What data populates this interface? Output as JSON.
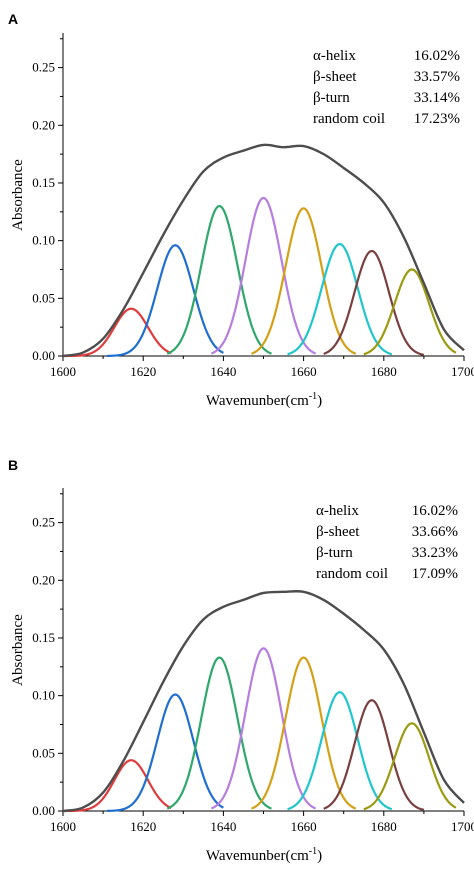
{
  "chart_data": [
    {
      "type": "area",
      "panel_label": "A",
      "xlabel": "Wavemunber(cm",
      "xlabel_sup": "-1",
      "xlabel_close": ")",
      "ylabel": "Absorbance",
      "xlim": [
        1600,
        1700
      ],
      "ylim": [
        0,
        0.28
      ],
      "xticks": [
        1600,
        1620,
        1640,
        1660,
        1680,
        1700
      ],
      "yticks": [
        0.0,
        0.05,
        0.1,
        0.15,
        0.2,
        0.25
      ],
      "grid": false,
      "annotations": [
        {
          "name": "α-helix",
          "value": "16.02%"
        },
        {
          "name": "β-sheet",
          "value": "33.57%"
        },
        {
          "name": "β-turn",
          "value": "33.14%"
        },
        {
          "name": "random coil",
          "value": "17.23%"
        }
      ],
      "envelope": {
        "color": "#4d4d4d",
        "points": [
          [
            1600,
            0.0
          ],
          [
            1605,
            0.003
          ],
          [
            1610,
            0.015
          ],
          [
            1615,
            0.04
          ],
          [
            1620,
            0.072
          ],
          [
            1625,
            0.105
          ],
          [
            1630,
            0.135
          ],
          [
            1635,
            0.16
          ],
          [
            1640,
            0.172
          ],
          [
            1645,
            0.178
          ],
          [
            1650,
            0.183
          ],
          [
            1655,
            0.181
          ],
          [
            1660,
            0.182
          ],
          [
            1665,
            0.175
          ],
          [
            1670,
            0.163
          ],
          [
            1675,
            0.15
          ],
          [
            1680,
            0.133
          ],
          [
            1685,
            0.103
          ],
          [
            1690,
            0.063
          ],
          [
            1695,
            0.023
          ],
          [
            1700,
            0.005
          ]
        ]
      },
      "series": [
        {
          "center": 1617,
          "height": 0.041,
          "sigma": 4.2,
          "range": [
            1600,
            1627
          ],
          "color": "#e03c3c"
        },
        {
          "center": 1628,
          "height": 0.096,
          "sigma": 4.5,
          "range": [
            1611,
            1640
          ],
          "color": "#1f6fd0"
        },
        {
          "center": 1639,
          "height": 0.13,
          "sigma": 4.5,
          "range": [
            1626,
            1652
          ],
          "color": "#2ea86b"
        },
        {
          "center": 1650,
          "height": 0.137,
          "sigma": 4.5,
          "range": [
            1637,
            1663
          ],
          "color": "#b57ee0"
        },
        {
          "center": 1660,
          "height": 0.128,
          "sigma": 4.5,
          "range": [
            1647,
            1673
          ],
          "color": "#d4a017"
        },
        {
          "center": 1669,
          "height": 0.097,
          "sigma": 4.5,
          "range": [
            1656,
            1682
          ],
          "color": "#1fc6cc"
        },
        {
          "center": 1677,
          "height": 0.091,
          "sigma": 4.3,
          "range": [
            1665,
            1690
          ],
          "color": "#7a4040"
        },
        {
          "center": 1687,
          "height": 0.075,
          "sigma": 4.3,
          "range": [
            1675,
            1698
          ],
          "color": "#9c9a10"
        }
      ]
    },
    {
      "type": "area",
      "panel_label": "B",
      "xlabel": "Wavemunber(cm",
      "xlabel_sup": "-1",
      "xlabel_close": ")",
      "ylabel": "Absorbance",
      "xlim": [
        1600,
        1700
      ],
      "ylim": [
        0,
        0.28
      ],
      "xticks": [
        1600,
        1620,
        1640,
        1660,
        1680,
        1700
      ],
      "yticks": [
        0.0,
        0.05,
        0.1,
        0.15,
        0.2,
        0.25
      ],
      "grid": false,
      "annotations": [
        {
          "name": "α-helix",
          "value": "16.02%"
        },
        {
          "name": "β-sheet",
          "value": "33.66%"
        },
        {
          "name": "β-turn",
          "value": "33.23%"
        },
        {
          "name": "random coil",
          "value": "17.09%"
        }
      ],
      "envelope": {
        "color": "#4d4d4d",
        "points": [
          [
            1600,
            0.0
          ],
          [
            1605,
            0.003
          ],
          [
            1610,
            0.016
          ],
          [
            1615,
            0.043
          ],
          [
            1620,
            0.077
          ],
          [
            1625,
            0.112
          ],
          [
            1630,
            0.143
          ],
          [
            1635,
            0.166
          ],
          [
            1640,
            0.177
          ],
          [
            1645,
            0.183
          ],
          [
            1650,
            0.189
          ],
          [
            1655,
            0.19
          ],
          [
            1660,
            0.19
          ],
          [
            1665,
            0.183
          ],
          [
            1670,
            0.171
          ],
          [
            1675,
            0.157
          ],
          [
            1680,
            0.14
          ],
          [
            1685,
            0.11
          ],
          [
            1690,
            0.068
          ],
          [
            1695,
            0.027
          ],
          [
            1700,
            0.007
          ]
        ]
      },
      "series": [
        {
          "center": 1617,
          "height": 0.044,
          "sigma": 4.2,
          "range": [
            1600,
            1627
          ],
          "color": "#e03c3c"
        },
        {
          "center": 1628,
          "height": 0.101,
          "sigma": 4.5,
          "range": [
            1611,
            1640
          ],
          "color": "#1f6fd0"
        },
        {
          "center": 1639,
          "height": 0.133,
          "sigma": 4.5,
          "range": [
            1626,
            1652
          ],
          "color": "#2ea86b"
        },
        {
          "center": 1650,
          "height": 0.141,
          "sigma": 4.5,
          "range": [
            1637,
            1663
          ],
          "color": "#b57ee0"
        },
        {
          "center": 1660,
          "height": 0.133,
          "sigma": 4.5,
          "range": [
            1647,
            1673
          ],
          "color": "#d4a017"
        },
        {
          "center": 1669,
          "height": 0.103,
          "sigma": 4.5,
          "range": [
            1656,
            1682
          ],
          "color": "#1fc6cc"
        },
        {
          "center": 1677,
          "height": 0.096,
          "sigma": 4.3,
          "range": [
            1665,
            1690
          ],
          "color": "#7a4040"
        },
        {
          "center": 1687,
          "height": 0.076,
          "sigma": 4.3,
          "range": [
            1675,
            1698
          ],
          "color": "#9c9a10"
        }
      ]
    }
  ]
}
